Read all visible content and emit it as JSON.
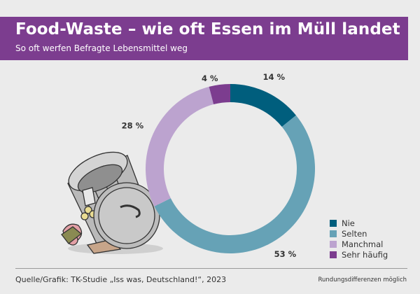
{
  "header": {
    "title": "Food-Waste – wie oft Essen im Müll landet",
    "subtitle": "So oft werfen Befragte Lebensmittel weg"
  },
  "chart_data": {
    "type": "pie",
    "title": "Food-Waste – wie oft Essen im Müll landet",
    "subtitle": "So oft werfen Befragte Lebensmittel weg",
    "categories": [
      "Nie",
      "Selten",
      "Manchmal",
      "Sehr häufig"
    ],
    "values": [
      14,
      53,
      28,
      4
    ],
    "value_labels": [
      "14 %",
      "53 %",
      "28 %",
      "4 %"
    ],
    "colors": [
      "#005e7d",
      "#66a2b6",
      "#bca3cf",
      "#7c3d8f"
    ],
    "donut": true,
    "legend_placement": "bottom-right"
  },
  "footer": {
    "source": "Quelle/Grafik: TK-Studie „Iss was, Deutschland!“, 2023",
    "note": "Rundungsdifferenzen möglich"
  }
}
